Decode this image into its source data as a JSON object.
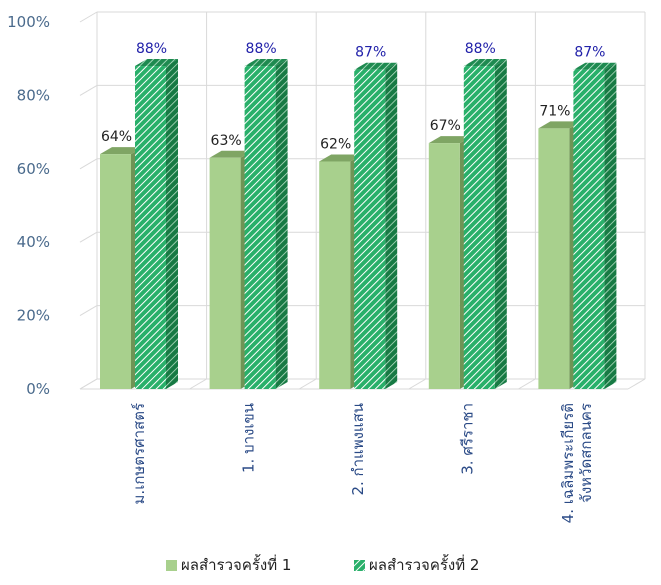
{
  "chart_data": {
    "type": "bar",
    "categories": [
      [
        "ม.เกษตรศาสตร์"
      ],
      [
        "1. บางเขน"
      ],
      [
        "2. กำแพงแสน"
      ],
      [
        "3. ศรีราชา"
      ],
      [
        "4. เฉลิมพระเกียรติ",
        "จังหวัดสกลนคร"
      ]
    ],
    "series": [
      {
        "name": "ผลสำรวจครั้งที่ 1",
        "values": [
          64,
          63,
          62,
          67,
          71
        ],
        "labels": [
          "64%",
          "63%",
          "62%",
          "67%",
          "71%"
        ]
      },
      {
        "name": "ผลสำรวจครั้งที่ 2",
        "values": [
          88,
          88,
          87,
          88,
          87
        ],
        "labels": [
          "88%",
          "88%",
          "87%",
          "88%",
          "87%"
        ]
      }
    ],
    "ylim": [
      0,
      100
    ],
    "yticks": [
      0,
      20,
      40,
      60,
      80,
      100
    ],
    "ytick_labels": [
      "0%",
      "20%",
      "40%",
      "60%",
      "80%",
      "100%"
    ],
    "grid": true,
    "legend": "bottom",
    "colors": {
      "series1_front": "#a8d08d",
      "series1_top": "#7fa564",
      "series1_side": "#6f9456",
      "series2_front": "#29b06a",
      "series2_stripe": "#ffffff",
      "series2_top": "#1e8a50",
      "series2_side": "#177a44",
      "grid": "#d9d9d9"
    }
  }
}
